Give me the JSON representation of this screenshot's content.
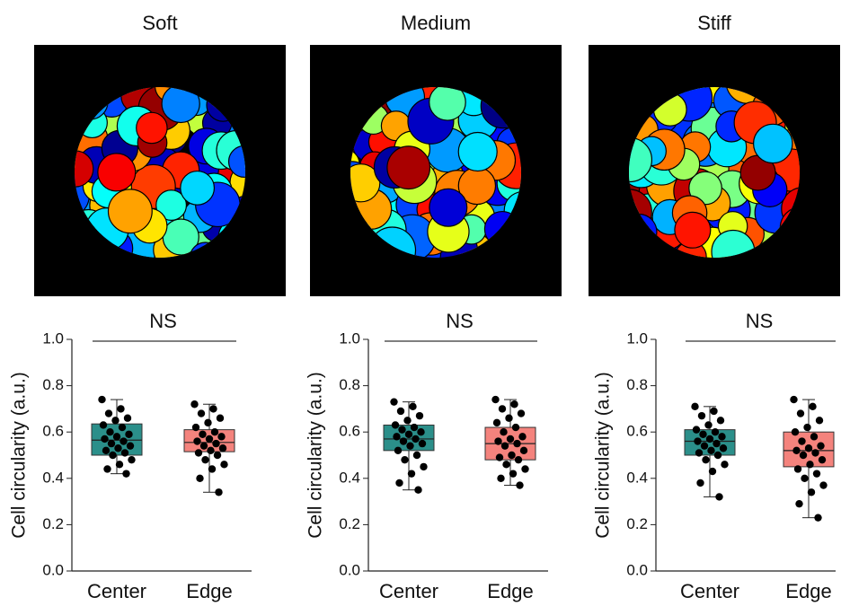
{
  "chart_data": [
    {
      "type": "box",
      "title": "Soft",
      "annotation": "NS",
      "y_label": "Cell circularity (a.u.)",
      "categories": [
        "Center",
        "Edge"
      ],
      "ylim": [
        0,
        1
      ],
      "yticks": [
        {
          "value": 0,
          "label": "0.0"
        },
        0.2,
        0.4,
        0.6,
        0.8,
        {
          "value": 1,
          "label": "1.0"
        }
      ],
      "boxes": [
        {
          "color": "#2b8f8a",
          "q1": 0.5,
          "median": 0.565,
          "q3": 0.635,
          "whislo": 0.42,
          "whishi": 0.74,
          "points": [
            0.74,
            0.7,
            0.68,
            0.66,
            0.65,
            0.63,
            0.62,
            0.6,
            0.59,
            0.58,
            0.57,
            0.56,
            0.55,
            0.54,
            0.53,
            0.52,
            0.51,
            0.5,
            0.48,
            0.46,
            0.44,
            0.42
          ]
        },
        {
          "color": "#f4837d",
          "q1": 0.515,
          "median": 0.555,
          "q3": 0.61,
          "whislo": 0.34,
          "whishi": 0.72,
          "points": [
            0.72,
            0.7,
            0.68,
            0.66,
            0.64,
            0.62,
            0.6,
            0.59,
            0.58,
            0.57,
            0.56,
            0.55,
            0.54,
            0.53,
            0.52,
            0.51,
            0.5,
            0.48,
            0.46,
            0.44,
            0.4,
            0.34
          ]
        }
      ]
    },
    {
      "type": "box",
      "title": "Medium",
      "annotation": "NS",
      "y_label": "Cell circularity (a.u.)",
      "categories": [
        "Center",
        "Edge"
      ],
      "ylim": [
        0,
        1
      ],
      "yticks": [
        {
          "value": 0,
          "label": "0.0"
        },
        0.2,
        0.4,
        0.6,
        0.8,
        {
          "value": 1,
          "label": "1.0"
        }
      ],
      "boxes": [
        {
          "color": "#2b8f8a",
          "q1": 0.52,
          "median": 0.57,
          "q3": 0.63,
          "whislo": 0.35,
          "whishi": 0.73,
          "points": [
            0.73,
            0.71,
            0.69,
            0.67,
            0.65,
            0.63,
            0.62,
            0.61,
            0.6,
            0.59,
            0.58,
            0.57,
            0.56,
            0.55,
            0.54,
            0.52,
            0.5,
            0.48,
            0.45,
            0.42,
            0.38,
            0.35
          ]
        },
        {
          "color": "#f4837d",
          "q1": 0.48,
          "median": 0.55,
          "q3": 0.62,
          "whislo": 0.37,
          "whishi": 0.74,
          "points": [
            0.74,
            0.72,
            0.7,
            0.68,
            0.66,
            0.64,
            0.62,
            0.6,
            0.58,
            0.57,
            0.56,
            0.55,
            0.54,
            0.52,
            0.5,
            0.49,
            0.48,
            0.46,
            0.44,
            0.42,
            0.4,
            0.37
          ]
        }
      ]
    },
    {
      "type": "box",
      "title": "Stiff",
      "annotation": "NS",
      "y_label": "Cell circularity (a.u.)",
      "categories": [
        "Center",
        "Edge"
      ],
      "ylim": [
        0,
        1
      ],
      "yticks": [
        {
          "value": 0,
          "label": "0.0"
        },
        0.2,
        0.4,
        0.6,
        0.8,
        {
          "value": 1,
          "label": "1.0"
        }
      ],
      "boxes": [
        {
          "color": "#2b8f8a",
          "q1": 0.5,
          "median": 0.56,
          "q3": 0.61,
          "whislo": 0.32,
          "whishi": 0.71,
          "points": [
            0.71,
            0.69,
            0.67,
            0.65,
            0.63,
            0.61,
            0.6,
            0.59,
            0.58,
            0.57,
            0.56,
            0.55,
            0.54,
            0.53,
            0.52,
            0.51,
            0.5,
            0.48,
            0.46,
            0.43,
            0.38,
            0.32
          ]
        },
        {
          "color": "#f4837d",
          "q1": 0.45,
          "median": 0.52,
          "q3": 0.6,
          "whislo": 0.23,
          "whishi": 0.74,
          "points": [
            0.74,
            0.71,
            0.68,
            0.65,
            0.62,
            0.6,
            0.58,
            0.56,
            0.54,
            0.53,
            0.52,
            0.51,
            0.5,
            0.48,
            0.46,
            0.44,
            0.42,
            0.4,
            0.37,
            0.34,
            0.29,
            0.23
          ]
        }
      ]
    }
  ]
}
